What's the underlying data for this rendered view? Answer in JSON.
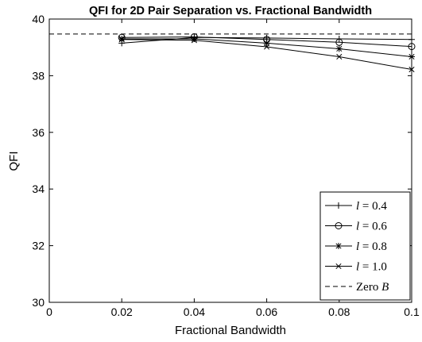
{
  "chart_data": {
    "type": "line",
    "title": "QFI for 2D Pair Separation vs. Fractional Bandwidth",
    "xlabel": "Fractional Bandwidth",
    "ylabel": "QFI",
    "xlim": [
      0,
      0.1
    ],
    "ylim": [
      30,
      40
    ],
    "xticks": [
      0,
      0.02,
      0.04,
      0.06,
      0.08,
      0.1
    ],
    "xtick_labels": [
      "0",
      "0.02",
      "0.04",
      "0.06",
      "0.08",
      "0.1"
    ],
    "yticks": [
      30,
      32,
      34,
      36,
      38,
      40
    ],
    "ytick_labels": [
      "30",
      "32",
      "34",
      "36",
      "38",
      "40"
    ],
    "grid": false,
    "legend_position": "bottom-right",
    "x": [
      0.02,
      0.04,
      0.06,
      0.08,
      0.1
    ],
    "series": [
      {
        "name": "l = 0.4",
        "legend_var": "l",
        "legend_val": "= 0.4",
        "marker": "plus",
        "style": "solid",
        "values": [
          39.15,
          39.35,
          39.33,
          39.3,
          39.28
        ]
      },
      {
        "name": "l = 0.6",
        "legend_var": "l",
        "legend_val": "= 0.6",
        "marker": "circle",
        "style": "solid",
        "values": [
          39.35,
          39.37,
          39.28,
          39.18,
          39.03
        ]
      },
      {
        "name": "l = 0.8",
        "legend_var": "l",
        "legend_val": "= 0.8",
        "marker": "star",
        "style": "solid",
        "values": [
          39.3,
          39.3,
          39.15,
          38.95,
          38.67
        ]
      },
      {
        "name": "l = 1.0",
        "legend_var": "l",
        "legend_val": "= 1.0",
        "marker": "x",
        "style": "solid",
        "values": [
          39.28,
          39.25,
          39.02,
          38.67,
          38.22
        ]
      },
      {
        "name": "Zero B",
        "legend_var": "B",
        "legend_val": "Zero ",
        "marker": "none",
        "style": "dashed",
        "constant": 39.47
      }
    ],
    "colors": {
      "line": "#000000",
      "axes": "#000000",
      "background": "#ffffff"
    }
  }
}
